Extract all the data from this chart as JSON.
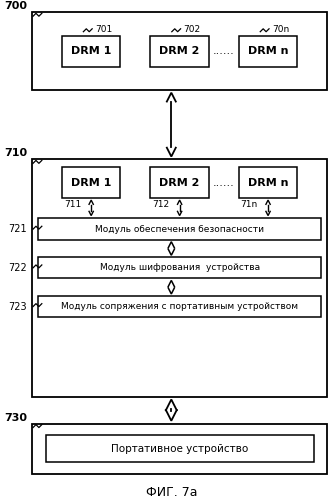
{
  "bg_color": "#ffffff",
  "fig_label": "ФИГ. 7а",
  "drm_labels_top": [
    "DRM 1",
    "DRM 2",
    "DRM n"
  ],
  "drm_nums_top": [
    "701",
    "702",
    "70n"
  ],
  "drm_labels_mid": [
    "DRM 1",
    "DRM 2",
    "DRM n"
  ],
  "drm_nums_mid": [
    "711",
    "712",
    "71n"
  ],
  "module_labels": [
    "Модуль обеспечения безопасности",
    "Модуль шифрования  устройства",
    "Модуль сопряжения с портативным устройством"
  ],
  "module_nums": [
    "721",
    "722",
    "723"
  ],
  "portable_label": "Портативное устройство",
  "dots": ".......",
  "box_labels": [
    "700",
    "710",
    "730"
  ]
}
